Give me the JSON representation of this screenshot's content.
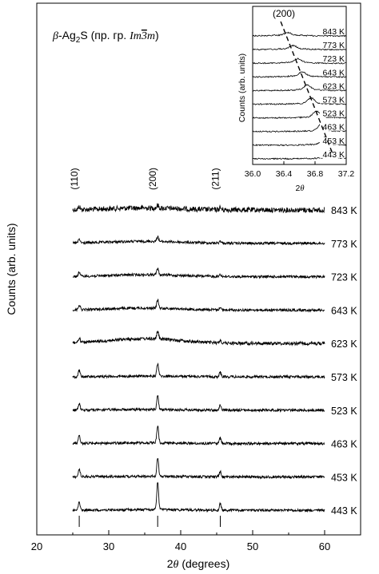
{
  "chart_data": [
    {
      "type": "line",
      "title": "β-Ag₂S (пр. гр. Im3̄m)",
      "title_parts": {
        "beta": "β",
        "mid": "-Ag",
        "sub": "2",
        "after": "S (пр. гр. ",
        "sg": "Im",
        "bar": "3",
        "sg2": "m",
        "close": ")"
      },
      "xlabel": "2θ (degrees)",
      "xlabel_parts": {
        "two": "2",
        "theta": "θ",
        "rest": " (degrees)"
      },
      "ylabel": "Counts (arb. units)",
      "xlim": [
        20,
        65
      ],
      "xticks": [
        20,
        30,
        40,
        50,
        60
      ],
      "yticks": "none",
      "grid": false,
      "x_range": [
        25,
        60
      ],
      "series": [
        {
          "name": "843 K",
          "baseline": 0.0
        },
        {
          "name": "773 K",
          "baseline": 1.0
        },
        {
          "name": "723 K",
          "baseline": 2.0
        },
        {
          "name": "643 K",
          "baseline": 3.0
        },
        {
          "name": "623 K",
          "baseline": 4.0
        },
        {
          "name": "573 K",
          "baseline": 5.0
        },
        {
          "name": "523 K",
          "baseline": 6.0
        },
        {
          "name": "463 K",
          "baseline": 7.0
        },
        {
          "name": "453 K",
          "baseline": 8.0
        },
        {
          "name": "443 K",
          "baseline": 9.0
        }
      ],
      "peaks": [
        {
          "label": "(110)",
          "x": 25.9
        },
        {
          "label": "(200)",
          "x": 36.8
        },
        {
          "label": "(211)",
          "x": 45.5
        }
      ],
      "peak_heights": {
        "843 K": [
          0.2,
          0.2,
          0.15
        ],
        "773 K": [
          0.25,
          0.35,
          0.15
        ],
        "723 K": [
          0.3,
          0.45,
          0.15
        ],
        "643 K": [
          0.35,
          0.6,
          0.2
        ],
        "623 K": [
          0.3,
          0.55,
          0.2
        ],
        "573 K": [
          0.45,
          0.9,
          0.3
        ],
        "523 K": [
          0.45,
          0.95,
          0.35
        ],
        "463 K": [
          0.55,
          1.2,
          0.4
        ],
        "453 K": [
          0.55,
          1.3,
          0.4
        ],
        "443 K": [
          0.6,
          1.9,
          0.45
        ]
      },
      "reference_ticks": [
        25.9,
        36.8,
        45.5
      ]
    },
    {
      "type": "line",
      "title": "(200)",
      "xlabel": "2θ",
      "xlabel_parts": {
        "two": "2",
        "theta": "θ"
      },
      "ylabel": "Counts (arb. units)",
      "xlim": [
        36.0,
        37.2
      ],
      "xticks": [
        36.0,
        36.4,
        36.8,
        37.2
      ],
      "xtick_labels": [
        "36.0",
        "36.4",
        "36.8",
        "37.2"
      ],
      "series": [
        {
          "name": "843 K",
          "peak_x": 36.45
        },
        {
          "name": "773 K",
          "peak_x": 36.52
        },
        {
          "name": "723 K",
          "peak_x": 36.58
        },
        {
          "name": "643 K",
          "peak_x": 36.64
        },
        {
          "name": "623 K",
          "peak_x": 36.7
        },
        {
          "name": "573 K",
          "peak_x": 36.75
        },
        {
          "name": "523 K",
          "peak_x": 36.82
        },
        {
          "name": "463 K",
          "peak_x": 36.88
        },
        {
          "name": "453 K",
          "peak_x": 36.93
        },
        {
          "name": "443 K",
          "peak_x": 37.0
        }
      ],
      "trend_line": {
        "from": [
          36.36,
          0
        ],
        "to": [
          37.02,
          9.6
        ]
      }
    }
  ]
}
